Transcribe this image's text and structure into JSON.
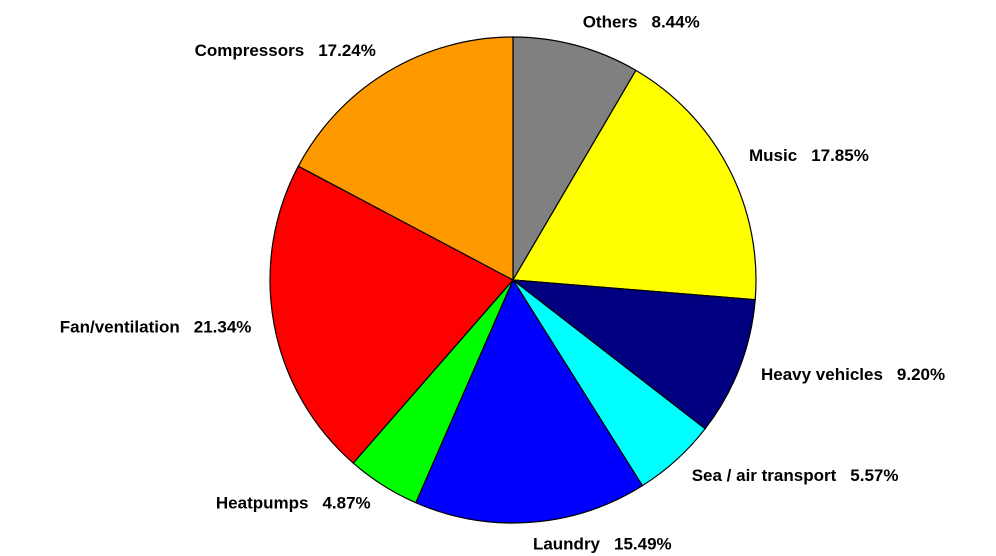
{
  "chart_data": {
    "type": "pie",
    "categories": [
      "Others",
      "Music",
      "Heavy vehicles",
      "Sea / air transport",
      "Laundry",
      "Heatpumps",
      "Fan/ventilation",
      "Compressors"
    ],
    "values": [
      8.44,
      17.85,
      9.2,
      5.57,
      15.49,
      4.87,
      21.34,
      17.24
    ],
    "value_labels": [
      "8.44%",
      "17.85%",
      "9.20%",
      "5.57%",
      "15.49%",
      "4.87%",
      "21.34%",
      "17.24%"
    ],
    "colors": [
      "#808080",
      "#ffff00",
      "#000080",
      "#00ffff",
      "#0000ff",
      "#00ff00",
      "#ff0000",
      "#ff9900"
    ]
  }
}
